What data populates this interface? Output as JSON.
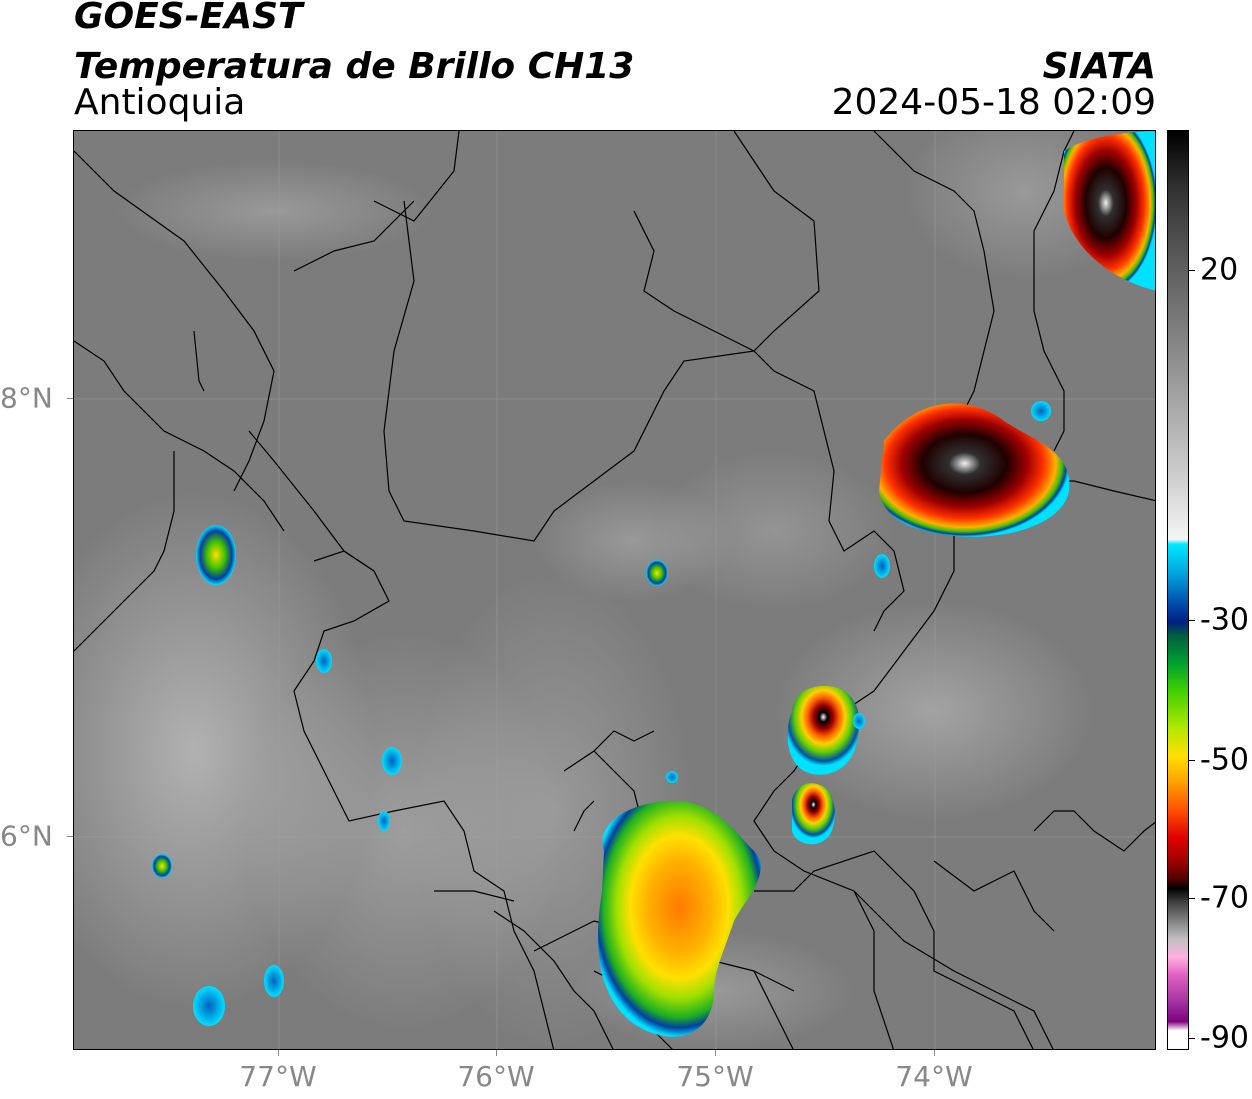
{
  "header": {
    "satellite": "GOES-EAST",
    "product": "Temperatura de Brillo CH13",
    "region": "Antioquia",
    "organization": "SIATA",
    "datetime": "2024-05-18 02:09"
  },
  "axes": {
    "longitude_labels": [
      "77°W",
      "76°W",
      "75°W",
      "74°W"
    ],
    "latitude_labels": [
      "8°N",
      "6°N"
    ],
    "grid": true
  },
  "colorbar": {
    "labels": [
      "20",
      "-30",
      "-50",
      "-70",
      "-90"
    ],
    "colors": {
      "warm_gray_top": "#000000",
      "cyan_start": "#00e8ff",
      "green": "#40d000",
      "yellow": "#ffe000",
      "red": "#e00000",
      "magenta": "#e060c0"
    }
  }
}
